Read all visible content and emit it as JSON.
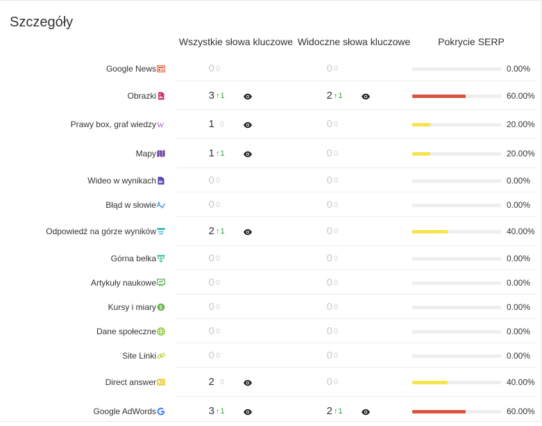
{
  "title": "Szczegóły",
  "columns": {
    "all_keywords": "Wszystkie słowa kluczowe",
    "visible_keywords": "Widoczne słowa kluczowe",
    "serp_coverage": "Pokrycie SERP"
  },
  "colors": {
    "high": "#d9533f",
    "low": "#f5e44b",
    "up": "#2e9c3b",
    "track": "#eeeeee"
  },
  "rows": [
    {
      "label": "Google News",
      "icon": "news-icon",
      "icon_color": "#e0684b",
      "all": "0",
      "all_delta": "0",
      "visible": "0",
      "visible_delta": "0",
      "coverage_pct": "0.00%",
      "coverage": 0,
      "all_eye": false,
      "visible_eye": false,
      "all_up": false,
      "visible_up": false
    },
    {
      "label": "Obrazki",
      "icon": "image-icon",
      "icon_color": "#d0356a",
      "all": "3",
      "all_delta": "1",
      "visible": "2",
      "visible_delta": "1",
      "coverage_pct": "60.00%",
      "coverage": 60,
      "all_eye": true,
      "visible_eye": true,
      "all_up": true,
      "visible_up": true
    },
    {
      "label": "Prawy box, graf wiedzy",
      "icon": "wiki-icon",
      "icon_color": "#a050c0",
      "all": "1",
      "all_delta": "0",
      "visible": "0",
      "visible_delta": "0",
      "coverage_pct": "20.00%",
      "coverage": 20,
      "all_eye": true,
      "visible_eye": false,
      "all_up": false,
      "visible_up": false
    },
    {
      "label": "Mapy",
      "icon": "map-icon",
      "icon_color": "#6a3fa5",
      "all": "1",
      "all_delta": "1",
      "visible": "0",
      "visible_delta": "0",
      "coverage_pct": "20.00%",
      "coverage": 20,
      "all_eye": true,
      "visible_eye": false,
      "all_up": true,
      "visible_up": false
    },
    {
      "label": "Wideo w wynikach",
      "icon": "video-file-icon",
      "icon_color": "#5a45b0",
      "all": "0",
      "all_delta": "0",
      "visible": "0",
      "visible_delta": "0",
      "coverage_pct": "0.00%",
      "coverage": 0,
      "all_eye": false,
      "visible_eye": false,
      "all_up": false,
      "visible_up": false
    },
    {
      "label": "Błąd w słowie",
      "icon": "spellcheck-icon",
      "icon_color": "#3a8fd8",
      "all": "0",
      "all_delta": "0",
      "visible": "0",
      "visible_delta": "0",
      "coverage_pct": "0.00%",
      "coverage": 0,
      "all_eye": false,
      "visible_eye": false,
      "all_up": false,
      "visible_up": false
    },
    {
      "label": "Odpowiedź na górze wyników",
      "icon": "answer-box-icon",
      "icon_color": "#3ab7c8",
      "all": "2",
      "all_delta": "1",
      "visible": "0",
      "visible_delta": "0",
      "coverage_pct": "40.00%",
      "coverage": 40,
      "all_eye": true,
      "visible_eye": false,
      "all_up": true,
      "visible_up": false
    },
    {
      "label": "Górna belka",
      "icon": "carousel-icon",
      "icon_color": "#3fbf8a",
      "all": "0",
      "all_delta": "0",
      "visible": "0",
      "visible_delta": "0",
      "coverage_pct": "0.00%",
      "coverage": 0,
      "all_eye": false,
      "visible_eye": false,
      "all_up": false,
      "visible_up": false
    },
    {
      "label": "Artykuły naukowe",
      "icon": "scholar-icon",
      "icon_color": "#4cae4c",
      "all": "0",
      "all_delta": "0",
      "visible": "0",
      "visible_delta": "0",
      "coverage_pct": "0.00%",
      "coverage": 0,
      "all_eye": false,
      "visible_eye": false,
      "all_up": false,
      "visible_up": false
    },
    {
      "label": "Kursy i miary",
      "icon": "currency-icon",
      "icon_color": "#6ab04c",
      "all": "0",
      "all_delta": "0",
      "visible": "0",
      "visible_delta": "0",
      "coverage_pct": "0.00%",
      "coverage": 0,
      "all_eye": false,
      "visible_eye": false,
      "all_up": false,
      "visible_up": false
    },
    {
      "label": "Dane społeczne",
      "icon": "globe-icon",
      "icon_color": "#8cc63f",
      "all": "0",
      "all_delta": "0",
      "visible": "0",
      "visible_delta": "0",
      "coverage_pct": "0.00%",
      "coverage": 0,
      "all_eye": false,
      "visible_eye": false,
      "all_up": false,
      "visible_up": false
    },
    {
      "label": "Site Linki",
      "icon": "link-icon",
      "icon_color": "#b5d334",
      "all": "0",
      "all_delta": "0",
      "visible": "0",
      "visible_delta": "0",
      "coverage_pct": "0.00%",
      "coverage": 0,
      "all_eye": false,
      "visible_eye": false,
      "all_up": false,
      "visible_up": false
    },
    {
      "label": "Direct answer",
      "icon": "direct-answer-icon",
      "icon_color": "#e6c619",
      "all": "2",
      "all_delta": "0",
      "visible": "0",
      "visible_delta": "0",
      "coverage_pct": "40.00%",
      "coverage": 40,
      "all_eye": true,
      "visible_eye": false,
      "all_up": false,
      "visible_up": false
    },
    {
      "label": "Google AdWords",
      "icon": "google-icon",
      "icon_color": "#4285f4",
      "all": "3",
      "all_delta": "1",
      "visible": "2",
      "visible_delta": "1",
      "coverage_pct": "60.00%",
      "coverage": 60,
      "all_eye": true,
      "visible_eye": true,
      "all_up": true,
      "visible_up": true
    }
  ]
}
